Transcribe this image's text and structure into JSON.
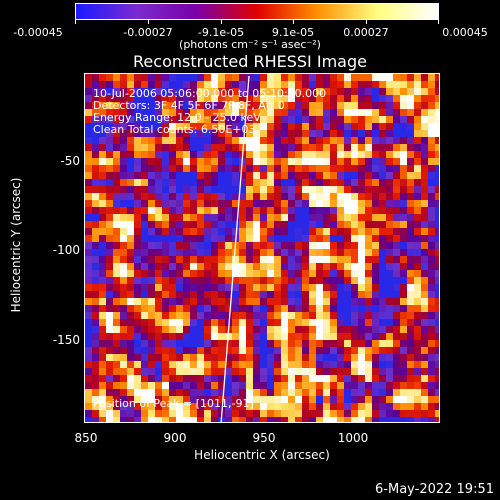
{
  "colorbar": {
    "ticks": [
      "-0.00045",
      "-0.00027",
      "-9.1e-05",
      "9.1e-05",
      "0.00027",
      "0.00045"
    ],
    "units": "(photons cm⁻² s⁻¹ asec⁻²)",
    "colors": [
      "#1a1aff",
      "#7a2bd0",
      "#7a00a8",
      "#e00000",
      "#ff9000",
      "#ffff80",
      "#ffffff"
    ]
  },
  "title": "Reconstructed RHESSI Image",
  "info": {
    "time": "10-Jul-2006 05:06:00.000 to 05:10:00.000",
    "detectors": "Detectors: 3F 4F 5F 6F 7F 8F, Att 0",
    "energy": "Energy Range: 12.0 - 25.0 keV",
    "clean": "Clean     Total counts: 6.50E+03",
    "peak": "Position of Peak = [1011,-91]"
  },
  "axes": {
    "xlabel": "Heliocentric X (arcsec)",
    "ylabel": "Heliocentric Y (arcsec)",
    "xticks": [
      "850",
      "900",
      "950",
      "1000"
    ],
    "yticks": [
      "-50",
      "-100",
      "-150"
    ]
  },
  "footer": "6-May-2022 19:51"
}
